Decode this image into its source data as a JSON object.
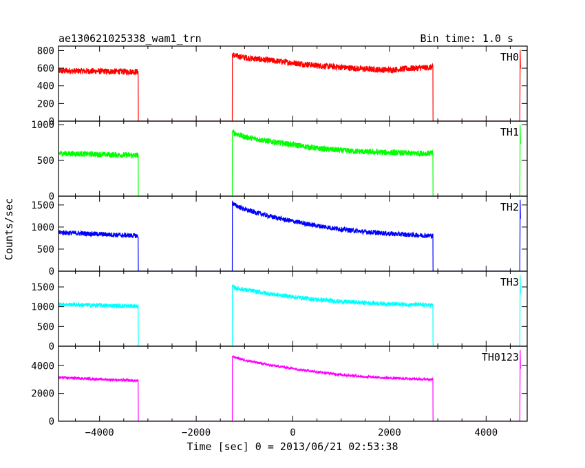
{
  "header": {
    "title": "ae130621025338_wam1_trn",
    "bin_time": "Bin time: 1.0 s"
  },
  "chart_data": {
    "type": "line",
    "title": "ae130621025338_wam1_trn",
    "subtitle": "Bin time: 1.0 s",
    "xlabel": "Time [sec] 0 = 2013/06/21 02:53:38",
    "ylabel": "Counts/sec",
    "xlim": [
      -4850,
      4850
    ],
    "x_ticks": [
      -4000,
      -2000,
      0,
      2000,
      4000
    ],
    "x_tick_labels": [
      "−4000",
      "−2000",
      "0",
      "2000",
      "4000"
    ],
    "gap_intervals": [
      [
        -3200,
        -1250
      ],
      [
        2900,
        4700
      ]
    ],
    "panels": [
      {
        "name": "TH0",
        "color": "#ff0000",
        "ylim": [
          0,
          850
        ],
        "yticks": [
          0,
          200,
          400,
          600,
          800
        ],
        "x": [
          -4850,
          -3200,
          -1250,
          -1200,
          -1000,
          -500,
          0,
          500,
          1000,
          1500,
          2000,
          2500,
          2900
        ],
        "values": [
          570,
          560,
          760,
          740,
          720,
          690,
          660,
          630,
          610,
          590,
          580,
          600,
          610
        ],
        "noise": 35
      },
      {
        "name": "TH1",
        "color": "#00ff00",
        "ylim": [
          0,
          1050
        ],
        "yticks": [
          0,
          500,
          1000
        ],
        "x": [
          -4850,
          -3200,
          -1250,
          -1200,
          -1000,
          -500,
          0,
          500,
          1000,
          1500,
          2000,
          2500,
          2900
        ],
        "values": [
          600,
          570,
          900,
          880,
          830,
          770,
          720,
          670,
          640,
          620,
          610,
          600,
          600
        ],
        "noise": 40
      },
      {
        "name": "TH2",
        "color": "#0000ff",
        "ylim": [
          0,
          1700
        ],
        "yticks": [
          0,
          500,
          1000,
          1500
        ],
        "x": [
          -4850,
          -3200,
          -1250,
          -1200,
          -1000,
          -500,
          0,
          500,
          1000,
          1500,
          2000,
          2500,
          2900
        ],
        "values": [
          880,
          800,
          1550,
          1500,
          1400,
          1250,
          1130,
          1030,
          950,
          890,
          850,
          820,
          800
        ],
        "noise": 55
      },
      {
        "name": "TH3",
        "color": "#00ffff",
        "ylim": [
          0,
          1900
        ],
        "yticks": [
          0,
          500,
          1000,
          1500
        ],
        "x": [
          -4850,
          -3200,
          -1250,
          -1200,
          -1000,
          -500,
          0,
          500,
          1000,
          1500,
          2000,
          2500,
          2900
        ],
        "values": [
          1060,
          1010,
          1520,
          1480,
          1430,
          1330,
          1250,
          1180,
          1130,
          1100,
          1070,
          1050,
          1040
        ],
        "noise": 55
      },
      {
        "name": "TH0123",
        "color": "#ff00ff",
        "ylim": [
          0,
          5400
        ],
        "yticks": [
          0,
          2000,
          4000
        ],
        "x": [
          -4850,
          -3200,
          -1250,
          -1200,
          -1000,
          -500,
          0,
          500,
          1000,
          1500,
          2000,
          2500,
          2900
        ],
        "values": [
          3150,
          2900,
          4700,
          4600,
          4400,
          4050,
          3800,
          3550,
          3350,
          3200,
          3100,
          3050,
          3000
        ],
        "noise": 90
      }
    ]
  }
}
